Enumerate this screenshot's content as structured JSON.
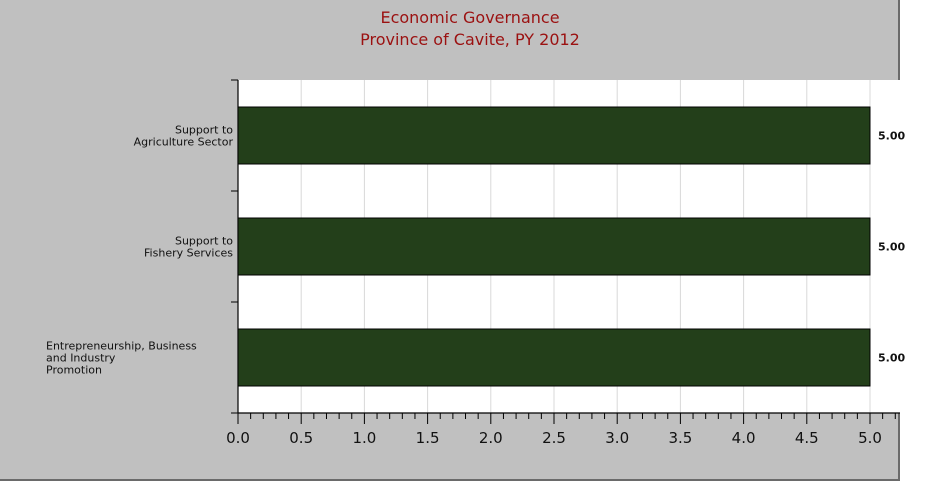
{
  "chart_data": {
    "type": "bar",
    "orientation": "horizontal",
    "title": "Economic Governance",
    "subtitle": "Province of Cavite, PY 2012",
    "categories": [
      [
        "Support to",
        "Agriculture Sector"
      ],
      [
        "Support to",
        "Fishery Services"
      ],
      [
        "Entrepreneurship, Business",
        "and Industry",
        "Promotion"
      ]
    ],
    "values": [
      5.0,
      5.0,
      5.0
    ],
    "data_labels": [
      "5.00",
      "5.00",
      "5.00"
    ],
    "xlim": [
      0,
      5
    ],
    "x_ticks": [
      "0.0",
      "0.5",
      "1.0",
      "1.5",
      "2.0",
      "2.5",
      "3.0",
      "3.5",
      "4.0",
      "4.5",
      "5.0"
    ],
    "grid": "vertical",
    "colors": {
      "bar": "#233f1a",
      "title": "#9b1111",
      "background": "#c0c0c0",
      "plot": "#ffffff"
    }
  }
}
